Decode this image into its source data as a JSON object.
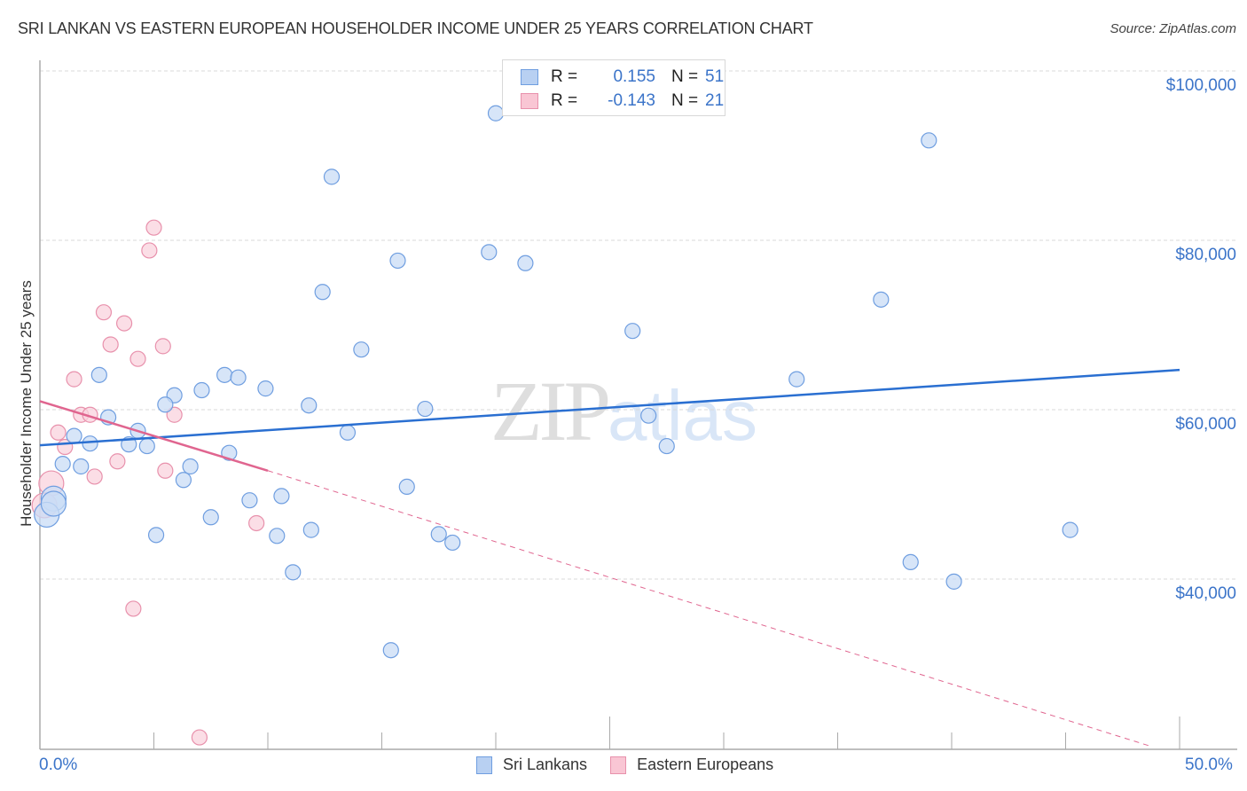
{
  "header": {
    "title": "SRI LANKAN VS EASTERN EUROPEAN HOUSEHOLDER INCOME UNDER 25 YEARS CORRELATION CHART",
    "source": "Source: ZipAtlas.com"
  },
  "watermark": {
    "zip": "ZIP",
    "atlas": "atlas"
  },
  "legend": {
    "rows": [
      {
        "r_label": "R =",
        "r_value": "0.155",
        "n_label": "N =",
        "n_value": "51",
        "color": "#b8d0f2",
        "border": "#6f9ee0"
      },
      {
        "r_label": "R =",
        "r_value": "-0.143",
        "n_label": "N =",
        "n_value": "21",
        "color": "#f9c6d4",
        "border": "#e891ac"
      }
    ]
  },
  "bottom_legend": {
    "items": [
      {
        "label": "Sri Lankans",
        "color": "#b8d0f2",
        "border": "#6f9ee0"
      },
      {
        "label": "Eastern Europeans",
        "color": "#f9c6d4",
        "border": "#e891ac"
      }
    ]
  },
  "axes": {
    "ylabel": "Householder Income Under 25 years",
    "y_ticks": [
      "$100,000",
      "$80,000",
      "$60,000",
      "$40,000"
    ],
    "x_ticks": [
      "0.0%",
      "50.0%"
    ]
  },
  "colors": {
    "blue_fill": "#c9dcf5",
    "blue_stroke": "#6f9ee0",
    "blue_line": "#2a6fd1",
    "pink_fill": "#f9d3de",
    "pink_stroke": "#e891ac",
    "pink_line": "#e0658f",
    "tick_label": "#3b74c9"
  },
  "chart_data": {
    "type": "scatter",
    "title": "SRI LANKAN VS EASTERN EUROPEAN HOUSEHOLDER INCOME UNDER 25 YEARS CORRELATION CHART",
    "xlabel": "",
    "ylabel": "Householder Income Under 25 years",
    "xlim": [
      0,
      50
    ],
    "ylim": [
      18000,
      102000
    ],
    "x_unit": "%",
    "y_ticks": [
      40000,
      60000,
      80000,
      100000
    ],
    "grid": "horizontal dashed",
    "legend_position": "top-center",
    "series": [
      {
        "name": "Sri Lankans",
        "r": 0.155,
        "n": 51,
        "trend": {
          "x": [
            0,
            50
          ],
          "y": [
            55800,
            64700
          ]
        },
        "points": [
          [
            20.0,
            95000
          ],
          [
            12.8,
            87500
          ],
          [
            39.0,
            91800
          ],
          [
            15.7,
            77600
          ],
          [
            19.7,
            78600
          ],
          [
            21.3,
            77300
          ],
          [
            12.4,
            73900
          ],
          [
            36.9,
            73000
          ],
          [
            26.0,
            69300
          ],
          [
            14.1,
            67100
          ],
          [
            33.2,
            63600
          ],
          [
            2.6,
            64100
          ],
          [
            8.1,
            64100
          ],
          [
            8.7,
            63800
          ],
          [
            7.1,
            62300
          ],
          [
            9.9,
            62500
          ],
          [
            5.9,
            61700
          ],
          [
            5.5,
            60600
          ],
          [
            11.8,
            60500
          ],
          [
            16.9,
            60100
          ],
          [
            26.7,
            59300
          ],
          [
            3.0,
            59100
          ],
          [
            4.3,
            57500
          ],
          [
            1.5,
            56900
          ],
          [
            2.2,
            56000
          ],
          [
            3.9,
            55900
          ],
          [
            4.7,
            55700
          ],
          [
            13.5,
            57300
          ],
          [
            27.5,
            55700
          ],
          [
            8.3,
            54900
          ],
          [
            1.0,
            53600
          ],
          [
            1.8,
            53300
          ],
          [
            6.6,
            53300
          ],
          [
            6.3,
            51700
          ],
          [
            16.1,
            50900
          ],
          [
            0.6,
            49500
          ],
          [
            10.6,
            49800
          ],
          [
            9.2,
            49300
          ],
          [
            7.5,
            47300
          ],
          [
            5.1,
            45200
          ],
          [
            10.4,
            45100
          ],
          [
            11.9,
            45800
          ],
          [
            17.5,
            45300
          ],
          [
            18.1,
            44300
          ],
          [
            45.2,
            45800
          ],
          [
            38.2,
            42000
          ],
          [
            11.1,
            40800
          ],
          [
            40.1,
            39700
          ],
          [
            15.4,
            31600
          ],
          [
            0.3,
            47600
          ],
          [
            0.6,
            48900
          ]
        ]
      },
      {
        "name": "Eastern Europeans",
        "r": -0.143,
        "n": 21,
        "trend": {
          "x": [
            0,
            10,
            48.8
          ],
          "y": [
            61000,
            52800,
            20200
          ],
          "solid_until_x": 10
        },
        "points": [
          [
            5.0,
            81500
          ],
          [
            4.8,
            78800
          ],
          [
            2.8,
            71500
          ],
          [
            3.7,
            70200
          ],
          [
            3.1,
            67700
          ],
          [
            5.4,
            67500
          ],
          [
            4.3,
            66000
          ],
          [
            1.5,
            63600
          ],
          [
            1.8,
            59400
          ],
          [
            2.2,
            59400
          ],
          [
            5.9,
            59400
          ],
          [
            0.8,
            57300
          ],
          [
            1.1,
            55600
          ],
          [
            3.4,
            53900
          ],
          [
            5.5,
            52800
          ],
          [
            2.4,
            52100
          ],
          [
            0.5,
            51300
          ],
          [
            0.2,
            48700
          ],
          [
            9.5,
            46600
          ],
          [
            4.1,
            36500
          ],
          [
            7.0,
            21300
          ]
        ]
      }
    ]
  }
}
